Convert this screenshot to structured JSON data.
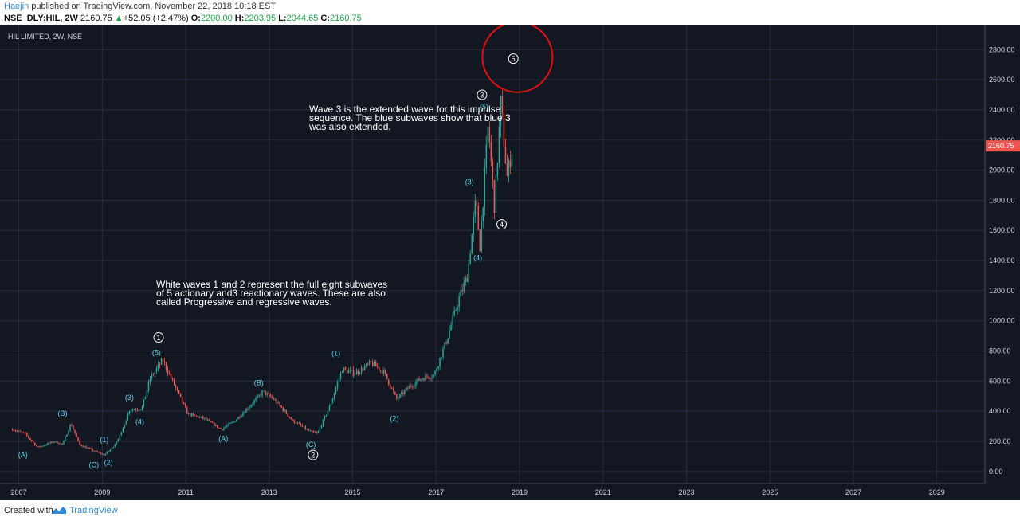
{
  "header": {
    "author": "Haejin",
    "published_text": "published on TradingView.com, November 22, 2018 10:18 EST",
    "symbol": "NSE_DLY:HIL, 2W",
    "last_price": "2160.75",
    "change_arrow": "▲",
    "change": "+52.05 (+2.47%)",
    "open_label": "O:",
    "open_value": "2200.00",
    "high_label": "H:",
    "high_value": "2203.95",
    "low_label": "L:",
    "low_value": "2044.65",
    "close_label": "C:",
    "close_value": "2160.75"
  },
  "chart_title": "HIL LIMITED, 2W, NSE",
  "price_tag": "2160.75",
  "annotations": {
    "wave3_note_lines": [
      "Wave 3 is the extended wave for this impulse",
      "sequence. The blue subwaves show that blue 3",
      "was also extended."
    ],
    "white_waves_note_lines": [
      "White waves 1 and 2 represent the full eight subwaves",
      "of 5 actionary and3 reactionary waves. These are also",
      "called Progressive and regressive waves."
    ]
  },
  "footer": {
    "created_with": "Created with",
    "brand": "TradingView"
  },
  "colors": {
    "background": "#131722",
    "grid": "#262c3c",
    "up": "#26a69a",
    "down": "#ef5350",
    "wave_label": "#5fd3e8",
    "price_tag": "#ef5350",
    "highlight_circle": "#e01010"
  },
  "chart_data": {
    "type": "candlestick",
    "title": "HIL LIMITED, 2W, NSE",
    "xlabel": "",
    "ylabel": "",
    "x_ticks": [
      "2007",
      "2009",
      "2011",
      "2013",
      "2015",
      "2017",
      "2019",
      "2021",
      "2023",
      "2025",
      "2027",
      "2029"
    ],
    "y_ticks": [
      "0.00",
      "200.00",
      "400.00",
      "600.00",
      "800.00",
      "1000.00",
      "1200.00",
      "1400.00",
      "1600.00",
      "1800.00",
      "2000.00",
      "2200.00",
      "2400.00",
      "2600.00",
      "2800.00"
    ],
    "xlim": [
      2006.6,
      2030.2
    ],
    "ylim": [
      -80,
      2960
    ],
    "grid": true,
    "last_close": 2160.75,
    "price_path": [
      {
        "t": 2006.9,
        "v": 280
      },
      {
        "t": 2007.2,
        "v": 250
      },
      {
        "t": 2007.5,
        "v": 160
      },
      {
        "t": 2007.9,
        "v": 200
      },
      {
        "t": 2008.1,
        "v": 180
      },
      {
        "t": 2008.3,
        "v": 320
      },
      {
        "t": 2008.5,
        "v": 180
      },
      {
        "t": 2008.9,
        "v": 130
      },
      {
        "t": 2009.1,
        "v": 110
      },
      {
        "t": 2009.3,
        "v": 160
      },
      {
        "t": 2009.5,
        "v": 250
      },
      {
        "t": 2009.7,
        "v": 410
      },
      {
        "t": 2010.0,
        "v": 420
      },
      {
        "t": 2010.2,
        "v": 620
      },
      {
        "t": 2010.5,
        "v": 740
      },
      {
        "t": 2010.8,
        "v": 560
      },
      {
        "t": 2011.1,
        "v": 380
      },
      {
        "t": 2011.5,
        "v": 350
      },
      {
        "t": 2011.9,
        "v": 280
      },
      {
        "t": 2012.2,
        "v": 330
      },
      {
        "t": 2012.6,
        "v": 440
      },
      {
        "t": 2012.9,
        "v": 530
      },
      {
        "t": 2013.2,
        "v": 470
      },
      {
        "t": 2013.6,
        "v": 340
      },
      {
        "t": 2014.0,
        "v": 270
      },
      {
        "t": 2014.2,
        "v": 250
      },
      {
        "t": 2014.5,
        "v": 430
      },
      {
        "t": 2014.8,
        "v": 680
      },
      {
        "t": 2015.1,
        "v": 650
      },
      {
        "t": 2015.5,
        "v": 720
      },
      {
        "t": 2015.8,
        "v": 660
      },
      {
        "t": 2016.1,
        "v": 480
      },
      {
        "t": 2016.4,
        "v": 560
      },
      {
        "t": 2016.7,
        "v": 620
      },
      {
        "t": 2017.0,
        "v": 640
      },
      {
        "t": 2017.3,
        "v": 870
      },
      {
        "t": 2017.6,
        "v": 1150
      },
      {
        "t": 2017.8,
        "v": 1300
      },
      {
        "t": 2018.0,
        "v": 1800
      },
      {
        "t": 2018.1,
        "v": 1500
      },
      {
        "t": 2018.3,
        "v": 2300
      },
      {
        "t": 2018.45,
        "v": 1750
      },
      {
        "t": 2018.6,
        "v": 2450
      },
      {
        "t": 2018.75,
        "v": 1950
      },
      {
        "t": 2018.88,
        "v": 2160
      }
    ],
    "wave_labels": [
      {
        "text": "(A)",
        "t": 2007.15,
        "v": 110,
        "style": "blue"
      },
      {
        "text": "(B)",
        "t": 2008.1,
        "v": 385,
        "style": "blue"
      },
      {
        "text": "(C)",
        "t": 2008.85,
        "v": 45,
        "style": "blue"
      },
      {
        "text": "(1)",
        "t": 2009.1,
        "v": 210,
        "style": "blue"
      },
      {
        "text": "(2)",
        "t": 2009.2,
        "v": 60,
        "style": "blue"
      },
      {
        "text": "(3)",
        "t": 2009.7,
        "v": 490,
        "style": "blue"
      },
      {
        "text": "(4)",
        "t": 2009.95,
        "v": 330,
        "style": "blue"
      },
      {
        "text": "(5)",
        "t": 2010.35,
        "v": 790,
        "style": "blue"
      },
      {
        "text": "1",
        "t": 2010.4,
        "v": 890,
        "style": "white-circle"
      },
      {
        "text": "(A)",
        "t": 2011.95,
        "v": 220,
        "style": "blue"
      },
      {
        "text": "(B)",
        "t": 2012.8,
        "v": 590,
        "style": "blue"
      },
      {
        "text": "(C)",
        "t": 2014.05,
        "v": 180,
        "style": "blue"
      },
      {
        "text": "2",
        "t": 2014.1,
        "v": 110,
        "style": "white-circle"
      },
      {
        "text": "(1)",
        "t": 2014.65,
        "v": 785,
        "style": "blue"
      },
      {
        "text": "(2)",
        "t": 2016.05,
        "v": 350,
        "style": "blue"
      },
      {
        "text": "(3)",
        "t": 2017.85,
        "v": 1920,
        "style": "blue"
      },
      {
        "text": "(4)",
        "t": 2018.05,
        "v": 1420,
        "style": "blue"
      },
      {
        "text": "(5)",
        "t": 2018.2,
        "v": 2420,
        "style": "blue"
      },
      {
        "text": "3",
        "t": 2018.15,
        "v": 2500,
        "style": "white-circle"
      },
      {
        "text": "4",
        "t": 2018.62,
        "v": 1640,
        "style": "white-circle"
      },
      {
        "text": "5",
        "t": 2018.9,
        "v": 2740,
        "style": "white-circle"
      }
    ],
    "highlight_circle": {
      "t": 2019.0,
      "v": 2750
    }
  }
}
